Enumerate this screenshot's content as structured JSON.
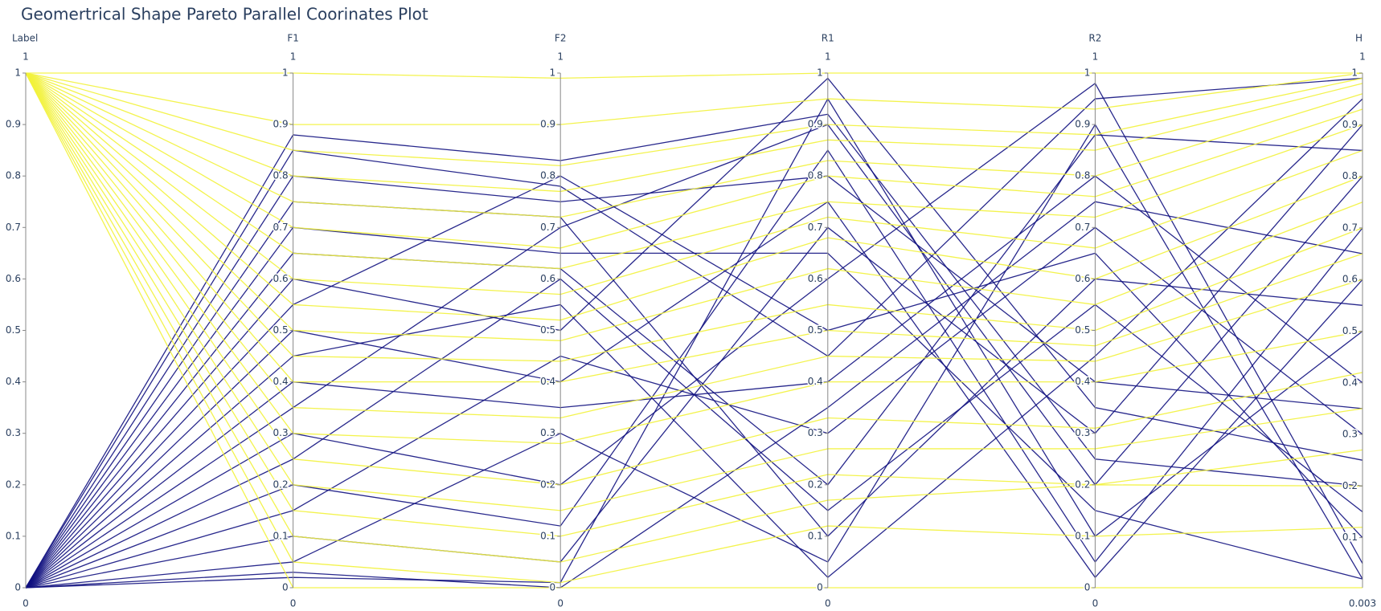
{
  "chart_data": {
    "type": "parcoords",
    "title": "Geomertrical Shape Pareto Parallel Coorinates Plot",
    "colors": [
      "#11117f",
      "#f2f23a"
    ],
    "dimensions": [
      {
        "label": "Label",
        "range": [
          0,
          1
        ],
        "ticks": [
          0,
          0.1,
          0.2,
          0.3,
          0.4,
          0.5,
          0.6,
          0.7,
          0.8,
          0.9,
          1
        ],
        "values": [
          0,
          0,
          0,
          0,
          0,
          0,
          0,
          0,
          0,
          0,
          0,
          0,
          0,
          0,
          0,
          0,
          0,
          0,
          0,
          0,
          1,
          1,
          1,
          1,
          1,
          1,
          1,
          1,
          1,
          1,
          1,
          1,
          1,
          1,
          1,
          1,
          1,
          1,
          1,
          1
        ]
      },
      {
        "label": "F1",
        "range": [
          0,
          1
        ],
        "ticks": [
          0,
          0.1,
          0.2,
          0.3,
          0.4,
          0.5,
          0.6,
          0.7,
          0.8,
          0.9,
          1
        ],
        "values": [
          0.02,
          0.05,
          0.1,
          0.15,
          0.2,
          0.25,
          0.3,
          0.35,
          0.4,
          0.45,
          0.5,
          0.55,
          0.6,
          0.65,
          0.7,
          0.75,
          0.8,
          0.85,
          0.88,
          0.03,
          0,
          0.05,
          0.1,
          0.15,
          0.2,
          0.25,
          0.3,
          0.35,
          0.4,
          0.45,
          0.5,
          0.55,
          0.6,
          0.65,
          0.7,
          0.75,
          0.8,
          0.85,
          0.9,
          1
        ]
      },
      {
        "label": "F2",
        "range": [
          0,
          1
        ],
        "ticks": [
          0,
          0.1,
          0.2,
          0.3,
          0.4,
          0.5,
          0.6,
          0.7,
          0.8,
          0.9,
          1
        ],
        "values": [
          0.01,
          0.3,
          0.05,
          0.45,
          0.12,
          0.6,
          0.2,
          0.7,
          0.35,
          0.55,
          0.4,
          0.8,
          0.5,
          0.62,
          0.65,
          0.72,
          0.75,
          0.78,
          0.83,
          0,
          0,
          0.01,
          0.05,
          0.1,
          0.15,
          0.2,
          0.28,
          0.33,
          0.4,
          0.44,
          0.48,
          0.52,
          0.57,
          0.62,
          0.66,
          0.72,
          0.77,
          0.82,
          0.9,
          0.99
        ]
      },
      {
        "label": "R1",
        "range": [
          0,
          1
        ],
        "ticks": [
          0,
          0.1,
          0.2,
          0.3,
          0.4,
          0.5,
          0.6,
          0.7,
          0.8,
          0.9,
          1
        ],
        "values": [
          0.95,
          0.05,
          0.7,
          0.3,
          0.85,
          0.15,
          0.6,
          0.9,
          0.4,
          0.02,
          0.75,
          0.5,
          0.99,
          0.2,
          0.65,
          0.1,
          0.8,
          0.45,
          0.92,
          0.35,
          0,
          0.12,
          0.17,
          0.22,
          0.27,
          0.33,
          0.4,
          0.45,
          0.5,
          0.55,
          0.62,
          0.68,
          0.72,
          0.75,
          0.8,
          0.83,
          0.87,
          0.9,
          0.95,
          1
        ]
      },
      {
        "label": "R2",
        "range": [
          0,
          1
        ],
        "ticks": [
          0,
          0.1,
          0.2,
          0.3,
          0.4,
          0.5,
          0.6,
          0.7,
          0.8,
          0.9,
          1
        ],
        "values": [
          0.1,
          0.9,
          0.3,
          0.7,
          0.05,
          0.55,
          0.98,
          0.2,
          0.8,
          0.45,
          0.02,
          0.65,
          0.35,
          0.88,
          0.15,
          0.6,
          0.4,
          0.95,
          0.25,
          0.75,
          0,
          0.1,
          0.2,
          0.2,
          0.27,
          0.31,
          0.4,
          0.44,
          0.47,
          0.5,
          0.55,
          0.6,
          0.66,
          0.72,
          0.76,
          0.8,
          0.85,
          0.88,
          0.93,
          1
        ]
      },
      {
        "label": "H",
        "range": [
          0.003,
          1
        ],
        "ticks": [
          0.1,
          0.2,
          0.3,
          0.4,
          0.5,
          0.6,
          0.7,
          0.8,
          0.9,
          1
        ],
        "values": [
          0.5,
          0.02,
          0.9,
          0.3,
          0.7,
          0.15,
          0.05,
          0.8,
          0.4,
          0.95,
          0.6,
          0.1,
          0.25,
          0.85,
          0.02,
          0.55,
          0.35,
          0.99,
          0.2,
          0.65,
          0.003,
          0.12,
          0.2,
          0.27,
          0.35,
          0.42,
          0.5,
          0.6,
          0.65,
          0.7,
          0.75,
          0.8,
          0.85,
          0.9,
          0.93,
          0.96,
          0.98,
          0.99,
          1,
          1
        ]
      }
    ]
  }
}
